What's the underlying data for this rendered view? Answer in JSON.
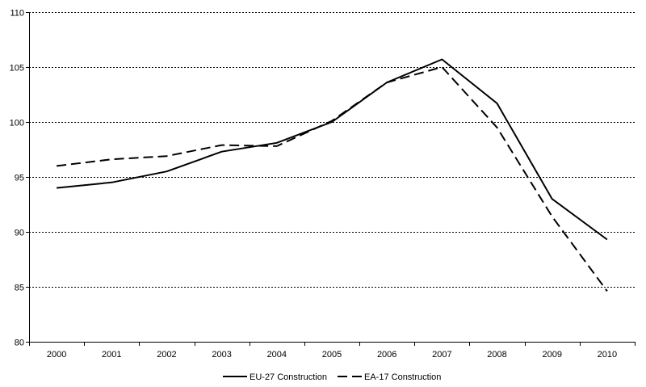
{
  "chart_data": {
    "type": "line",
    "title": "",
    "xlabel": "",
    "ylabel": "",
    "x": [
      "2000",
      "2001",
      "2002",
      "2003",
      "2004",
      "2005",
      "2006",
      "2007",
      "2008",
      "2009",
      "2010"
    ],
    "ylim": [
      80,
      110
    ],
    "yticks": [
      "80",
      "85",
      "90",
      "95",
      "100",
      "105",
      "110"
    ],
    "grid": "horizontal dotted",
    "legend_position": "bottom-center",
    "series": [
      {
        "name": "EU-27 Construction",
        "style": "solid",
        "color": "#000000",
        "values": [
          94.0,
          94.5,
          95.5,
          97.3,
          98.1,
          100.0,
          103.6,
          105.7,
          101.7,
          93.0,
          89.3
        ]
      },
      {
        "name": "EA-17 Construction",
        "style": "dashed",
        "color": "#000000",
        "values": [
          96.0,
          96.6,
          96.9,
          97.9,
          97.8,
          100.1,
          103.6,
          105.0,
          99.5,
          91.4,
          84.6
        ]
      }
    ]
  }
}
